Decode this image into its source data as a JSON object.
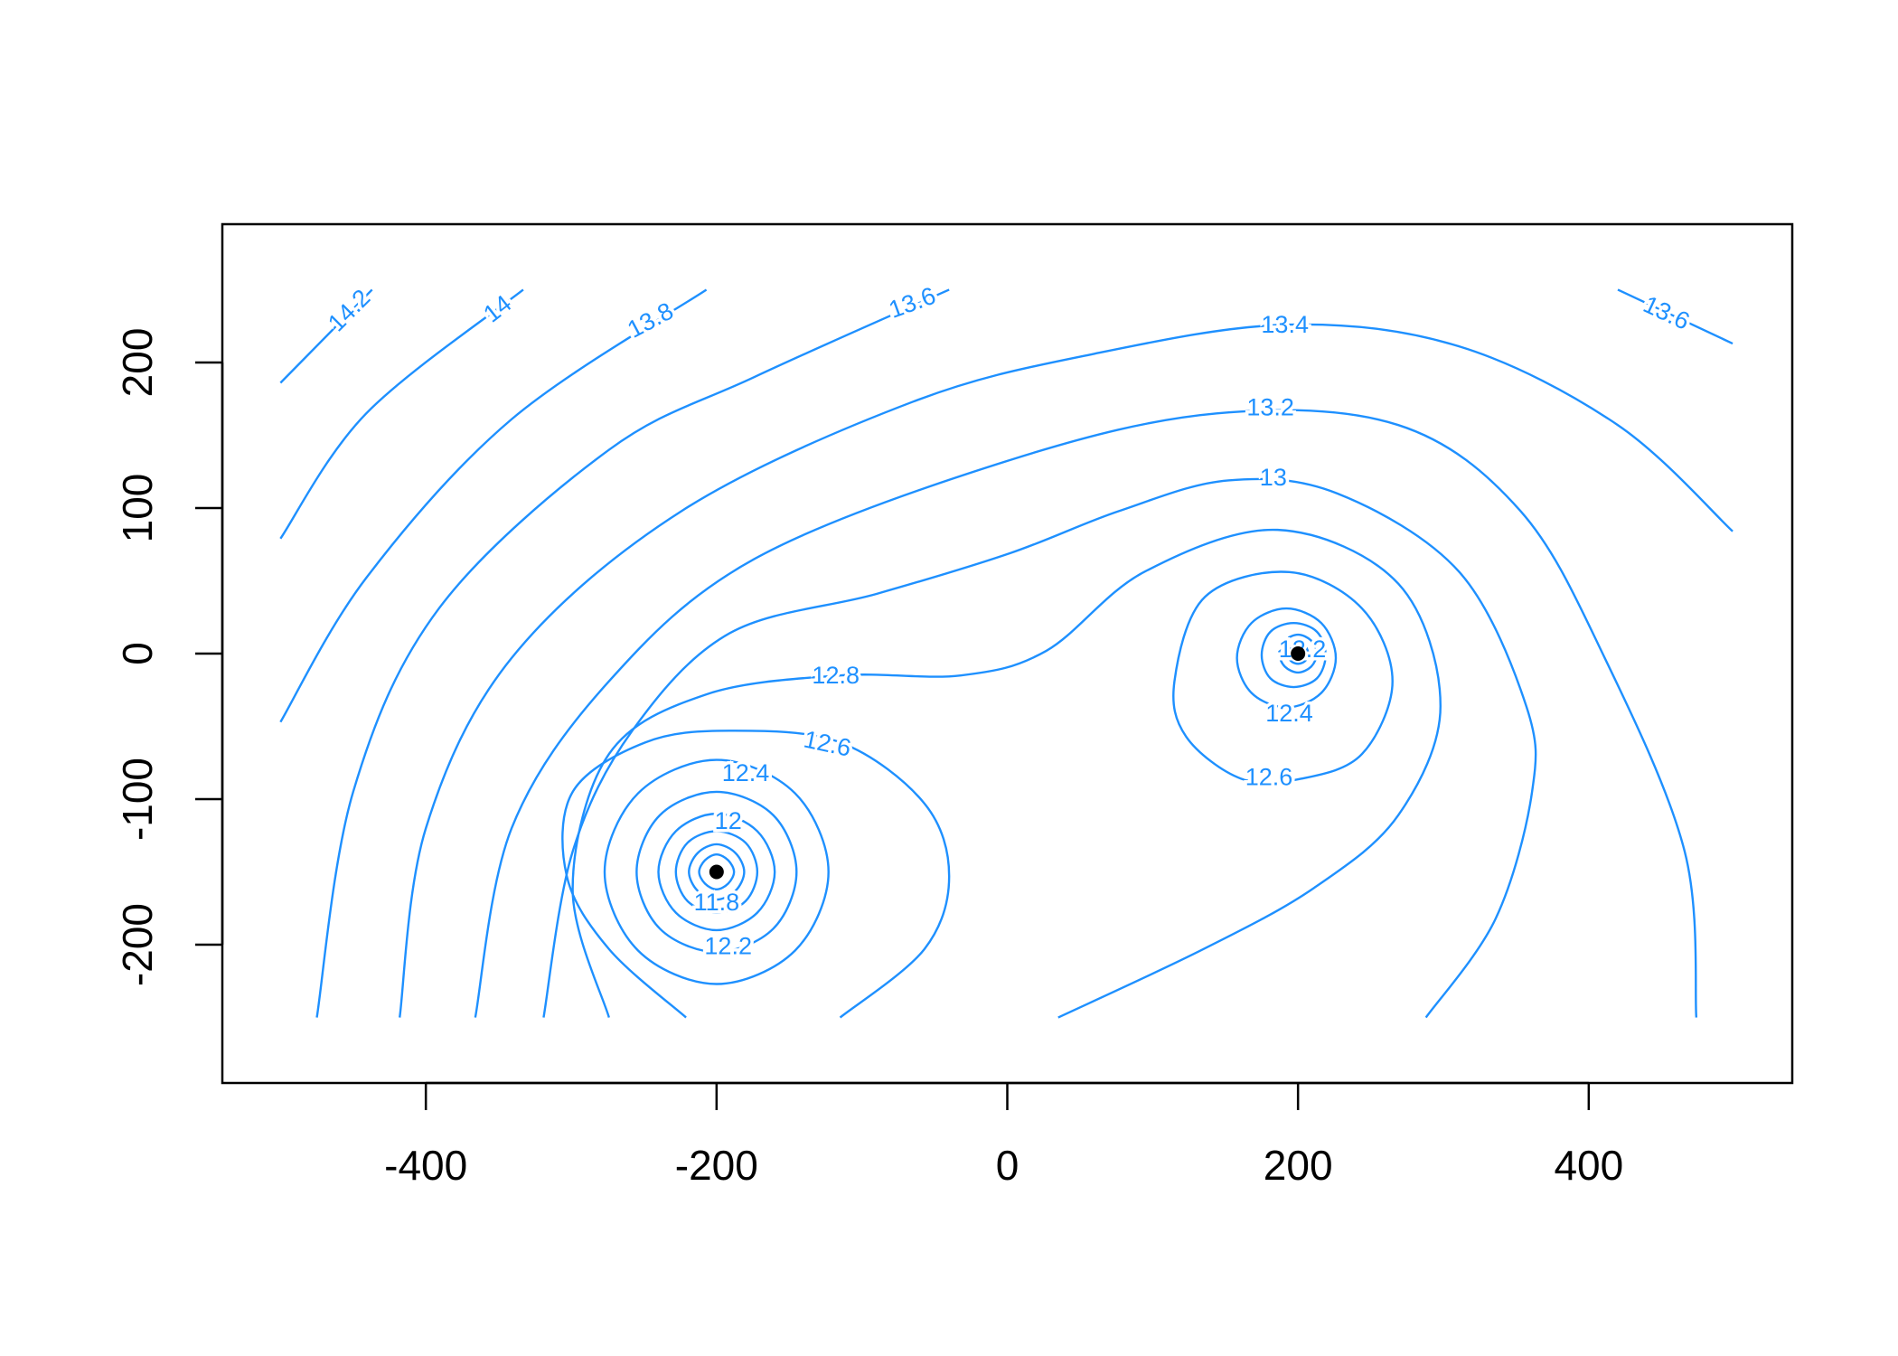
{
  "chart_data": {
    "type": "contour",
    "color": "#1e90ff",
    "point_color": "#000000",
    "xlim": [
      -540,
      540
    ],
    "ylim": [
      -295,
      295
    ],
    "xticks": [
      -400,
      -200,
      0,
      200,
      400
    ],
    "yticks": [
      -200,
      -100,
      0,
      100,
      200
    ],
    "contours": [
      {
        "x": [
          -500,
          -437
        ],
        "y": [
          186,
          250
        ]
      },
      {
        "x": [
          -500,
          -441,
          -333
        ],
        "y": [
          79,
          165,
          250
        ]
      },
      {
        "x": [
          -500,
          -441,
          -341,
          -207
        ],
        "y": [
          -47,
          52,
          161,
          250
        ]
      },
      {
        "x": [
          -475,
          -450,
          -391,
          -274,
          -174,
          -40
        ],
        "y": [
          -250,
          -95,
          31,
          140,
          190,
          250
        ]
      },
      {
        "x": [
          420,
          499
        ],
        "y": [
          250,
          213
        ]
      },
      {
        "x": [
          -418,
          -400,
          -341,
          -224,
          -65,
          60,
          194,
          311,
          420,
          499
        ],
        "y": [
          -250,
          -120,
          -3,
          98,
          173,
          206,
          226,
          211,
          157,
          84
        ]
      },
      {
        "x": [
          -366,
          -341,
          -274,
          -174,
          2,
          144,
          269,
          353,
          411,
          466,
          474
        ],
        "y": [
          -250,
          -120,
          -19,
          65,
          133,
          165,
          157,
          98,
          -3,
          -136,
          -250
        ]
      },
      {
        "x": [
          -319,
          -299,
          -258,
          -191,
          -90,
          2,
          77,
          152,
          227,
          311,
          357,
          361,
          336,
          288
        ],
        "y": [
          -250,
          -136,
          -53,
          14,
          41,
          69,
          98,
          119,
          110,
          56,
          -36,
          -95,
          -182,
          -250
        ]
      },
      {
        "x": [
          -274,
          -299,
          -274,
          -207,
          -115,
          -32,
          27,
          94,
          186,
          269,
          298,
          269,
          211,
          135,
          35
        ],
        "y": [
          -250,
          -162,
          -69,
          -28,
          -15,
          -15,
          2,
          56,
          85,
          48,
          -36,
          -111,
          -161,
          -203,
          -250
        ]
      },
      {
        "x": [
          -221,
          -274,
          -303,
          -299,
          -249,
          -191,
          -115,
          -57,
          -40,
          -57,
          -115
        ],
        "y": [
          -250,
          -203,
          -153,
          -95,
          -61,
          -53,
          -61,
          -103,
          -153,
          -203,
          -250
        ]
      },
      {
        "x": [
          161,
          123,
          115,
          136,
          194,
          244,
          265,
          244,
          202
        ],
        "y": [
          -86,
          -57,
          -19,
          39,
          56,
          31,
          -19,
          -69,
          -86
        ],
        "closed": true
      },
      {
        "x": [
          -123,
          -146,
          -200,
          -254,
          -277,
          -254,
          -200,
          -146
        ],
        "y": [
          -150,
          -96,
          -73,
          -96,
          -150,
          -204,
          -227,
          -204
        ],
        "closed": true
      },
      {
        "x": [
          -145,
          -161,
          -200,
          -239,
          -255,
          -239,
          -200,
          -161
        ],
        "y": [
          -150,
          -111,
          -95,
          -111,
          -150,
          -189,
          -205,
          -189
        ],
        "closed": true
      },
      {
        "x": [
          -160,
          -172,
          -200,
          -228,
          -240,
          -228,
          -200,
          -172
        ],
        "y": [
          -150,
          -122,
          -110,
          -122,
          -150,
          -178,
          -190,
          -178
        ],
        "closed": true
      },
      {
        "x": [
          -172,
          -180,
          -200,
          -220,
          -228,
          -220,
          -200,
          -180
        ],
        "y": [
          -150,
          -130,
          -122,
          -130,
          -150,
          -170,
          -178,
          -170
        ],
        "closed": true
      },
      {
        "x": [
          -181,
          -187,
          -200,
          -213,
          -219,
          -213,
          -200,
          -187
        ],
        "y": [
          -150,
          -137,
          -131,
          -137,
          -150,
          -163,
          -169,
          -163
        ],
        "closed": true
      },
      {
        "x": [
          -188,
          -192,
          -200,
          -208,
          -212,
          -208,
          -200,
          -192
        ],
        "y": [
          -150,
          -142,
          -138,
          -142,
          -150,
          -158,
          -162,
          -158
        ],
        "closed": true
      },
      {
        "x": [
          226,
          216,
          192,
          168,
          158,
          168,
          192,
          216
        ],
        "y": [
          -3,
          21,
          31,
          21,
          -3,
          -27,
          -37,
          -27
        ],
        "closed": true
      },
      {
        "x": [
          219,
          213,
          197,
          181,
          175,
          181,
          197,
          213
        ],
        "y": [
          -1,
          15,
          21,
          15,
          -1,
          -17,
          -23,
          -17
        ],
        "closed": true
      },
      {
        "x": [
          213,
          209,
          200,
          191,
          187,
          191,
          200,
          209
        ],
        "y": [
          0,
          9,
          13,
          9,
          0,
          -9,
          -13,
          -9
        ],
        "closed": true
      },
      {
        "x": [
          207,
          205,
          200,
          195,
          193,
          195,
          200,
          205
        ],
        "y": [
          0,
          5,
          7,
          5,
          0,
          -5,
          -7,
          -5
        ],
        "closed": true
      }
    ],
    "contour_labels": [
      {
        "text": 14.2,
        "x": -452,
        "y": 235,
        "angle": -45
      },
      {
        "text": 14,
        "x": -350,
        "y": 236,
        "angle": -38
      },
      {
        "text": 13.8,
        "x": -245,
        "y": 228,
        "angle": -28
      },
      {
        "text": 13.6,
        "x": -65,
        "y": 240,
        "angle": -20
      },
      {
        "text": 13.6,
        "x": 453,
        "y": 233,
        "angle": 25
      },
      {
        "text": 13.4,
        "x": 191,
        "y": 225,
        "angle": 0
      },
      {
        "text": 13.2,
        "x": 181,
        "y": 168,
        "angle": 0
      },
      {
        "text": 13,
        "x": 183,
        "y": 120,
        "angle": 0
      },
      {
        "text": 12.8,
        "x": -118,
        "y": -16,
        "angle": 0
      },
      {
        "text": 12.6,
        "x": -124,
        "y": -63,
        "angle": 12
      },
      {
        "text": 12.6,
        "x": 180,
        "y": -86,
        "angle": 0
      },
      {
        "text": 12.4,
        "x": -180,
        "y": -83,
        "angle": 0
      },
      {
        "text": 12.2,
        "x": -192,
        "y": -202,
        "angle": 0
      },
      {
        "text": 12,
        "x": -192,
        "y": -116,
        "angle": 0
      },
      {
        "text": 11.8,
        "x": -200,
        "y": -172,
        "angle": 0
      },
      {
        "text": 12.4,
        "x": 194,
        "y": -42,
        "angle": 0
      },
      {
        "text": 12.2,
        "x": 203,
        "y": 2,
        "angle": 0
      }
    ],
    "points": {
      "x": [
        -200,
        200
      ],
      "y": [
        -150,
        0
      ]
    }
  }
}
